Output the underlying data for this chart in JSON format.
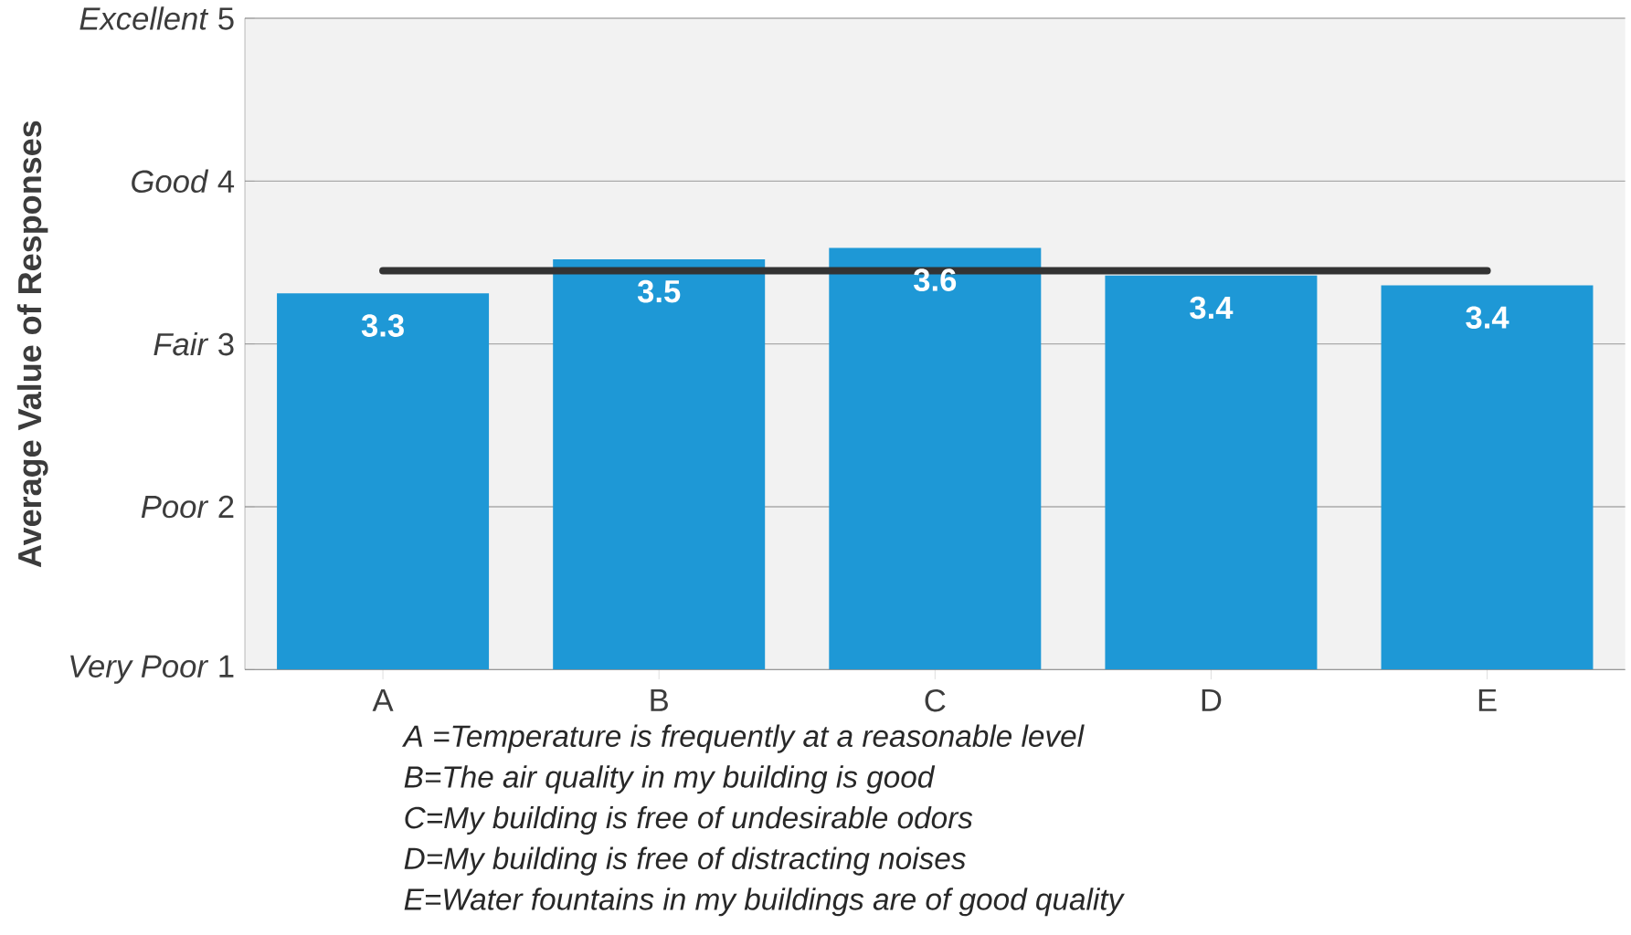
{
  "chart_data": {
    "type": "bar",
    "ylabel": "Average Value of Responses",
    "categories": [
      "A",
      "B",
      "C",
      "D",
      "E"
    ],
    "values": [
      3.31,
      3.52,
      3.59,
      3.42,
      3.36
    ],
    "value_labels": [
      "3.3",
      "3.5",
      "3.6",
      "3.4",
      "3.4"
    ],
    "color": "#1e98d6",
    "ylim": [
      1,
      5
    ],
    "yticks": [
      {
        "value": 1,
        "label": "*Very Poor*  1"
      },
      {
        "value": 2,
        "label": "*Poor*  2"
      },
      {
        "value": 3,
        "label": "*Fair*  3"
      },
      {
        "value": 4,
        "label": "*Good*  4"
      },
      {
        "value": 5,
        "label": "*Excellent*  5"
      }
    ],
    "grid": "y",
    "ref_lines": [
      {
        "axis": "y",
        "value": 3.45,
        "color": "#333333"
      }
    ],
    "annotations": [
      "A =Temperature is frequently at a reasonable level",
      "B=The air quality in my building is good",
      "C=My building is free of undesirable odors",
      "D=My building is free of distracting noises",
      "E=Water fountains in my buildings are of good quality"
    ]
  }
}
